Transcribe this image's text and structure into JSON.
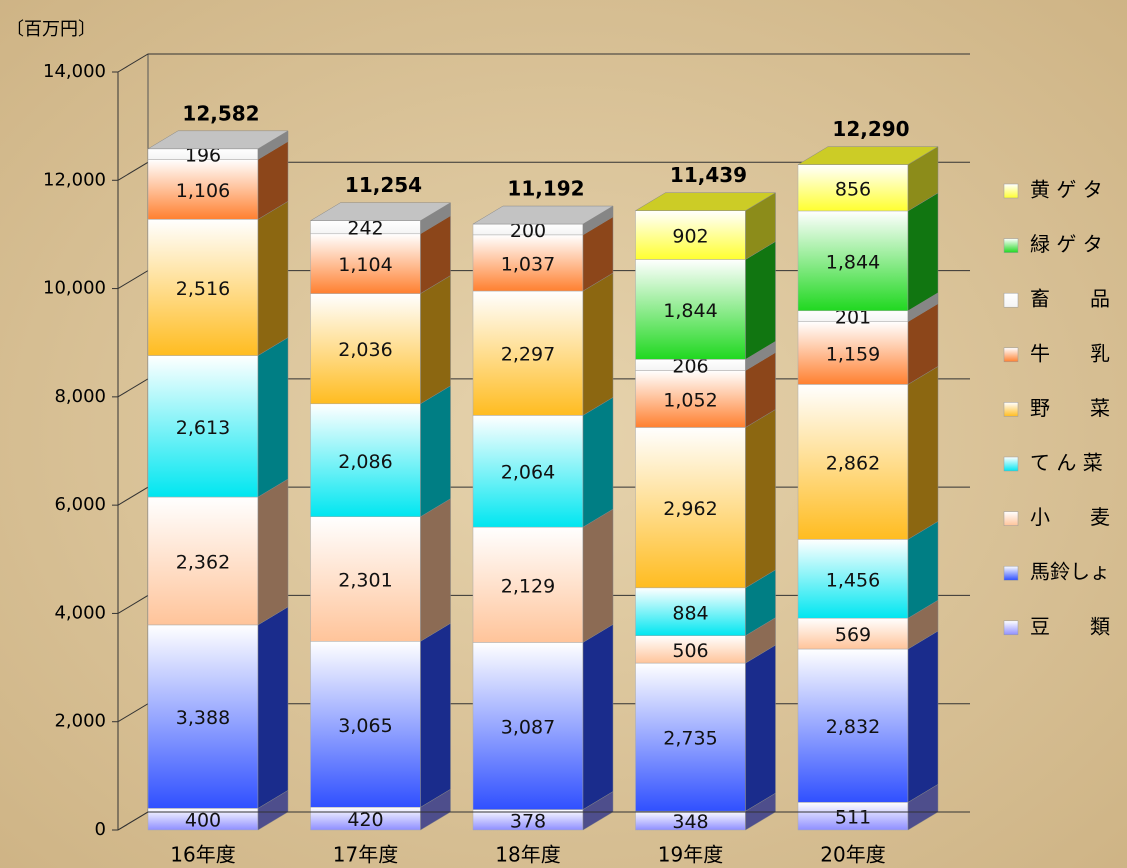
{
  "chart_data": {
    "type": "bar",
    "stacked": true,
    "unit_label": "〔百万円〕",
    "categories": [
      "16年度",
      "17年度",
      "18年度",
      "19年度",
      "20年度"
    ],
    "ylim": [
      0,
      14000
    ],
    "yticks": [
      0,
      {
        "value": 2000,
        "label": "2,000"
      },
      {
        "value": 4000,
        "label": "4,000"
      },
      {
        "value": 6000,
        "label": "6,000"
      },
      {
        "value": 8000,
        "label": "8,000"
      },
      {
        "value": 10000,
        "label": "10,000"
      },
      {
        "value": 12000,
        "label": "12,000"
      },
      {
        "value": 14000,
        "label": "14,000"
      }
    ],
    "grid": true,
    "series": [
      {
        "name": "豆　　類",
        "color": "#8f8fff",
        "values": [
          400,
          420,
          378,
          348,
          511
        ],
        "value_labels": [
          "400",
          "420",
          "378",
          "348",
          "511"
        ]
      },
      {
        "name": "馬鈴しょ",
        "color": "#3050ff",
        "values": [
          3388,
          3065,
          3087,
          2735,
          2832
        ],
        "value_labels": [
          "3,388",
          "3,065",
          "3,087",
          "2,735",
          "2,832"
        ]
      },
      {
        "name": "小　　麦",
        "color": "#ffc49a",
        "values": [
          2362,
          2301,
          2129,
          506,
          569
        ],
        "value_labels": [
          "2,362",
          "2,301",
          "2,129",
          "506",
          "569"
        ]
      },
      {
        "name": "て ん 菜",
        "color": "#00e6f0",
        "values": [
          2613,
          2086,
          2064,
          884,
          1456
        ],
        "value_labels": [
          "2,613",
          "2,086",
          "2,064",
          "884",
          "1,456"
        ]
      },
      {
        "name": "野　　菜",
        "color": "#ffbc20",
        "values": [
          2516,
          2036,
          2297,
          2962,
          2862
        ],
        "value_labels": [
          "2,516",
          "2,036",
          "2,297",
          "2,962",
          "2,862"
        ]
      },
      {
        "name": "牛　　乳",
        "color": "#ff8030",
        "values": [
          1106,
          1104,
          1037,
          1052,
          1159
        ],
        "value_labels": [
          "1,106",
          "1,104",
          "1,037",
          "1,052",
          "1,159"
        ]
      },
      {
        "name": "畜　　品",
        "color": "#f4f4f4",
        "values": [
          196,
          242,
          200,
          206,
          201
        ],
        "value_labels": [
          "196",
          "242",
          "200",
          "206",
          "201"
        ]
      },
      {
        "name": "緑 ゲ タ",
        "color": "#20d820",
        "values": [
          null,
          null,
          null,
          1844,
          1844
        ],
        "value_labels": [
          null,
          null,
          null,
          "1,844",
          "1,844"
        ]
      },
      {
        "name": "黄 ゲ タ",
        "color": "#ffff30",
        "values": [
          null,
          null,
          null,
          902,
          856
        ],
        "value_labels": [
          null,
          null,
          null,
          "902",
          "856"
        ]
      }
    ],
    "totals": [
      12582,
      11254,
      11192,
      11439,
      12290
    ],
    "total_labels": [
      "12,582",
      "11,254",
      "11,192",
      "11,439",
      "12,290"
    ],
    "legend": "right"
  }
}
